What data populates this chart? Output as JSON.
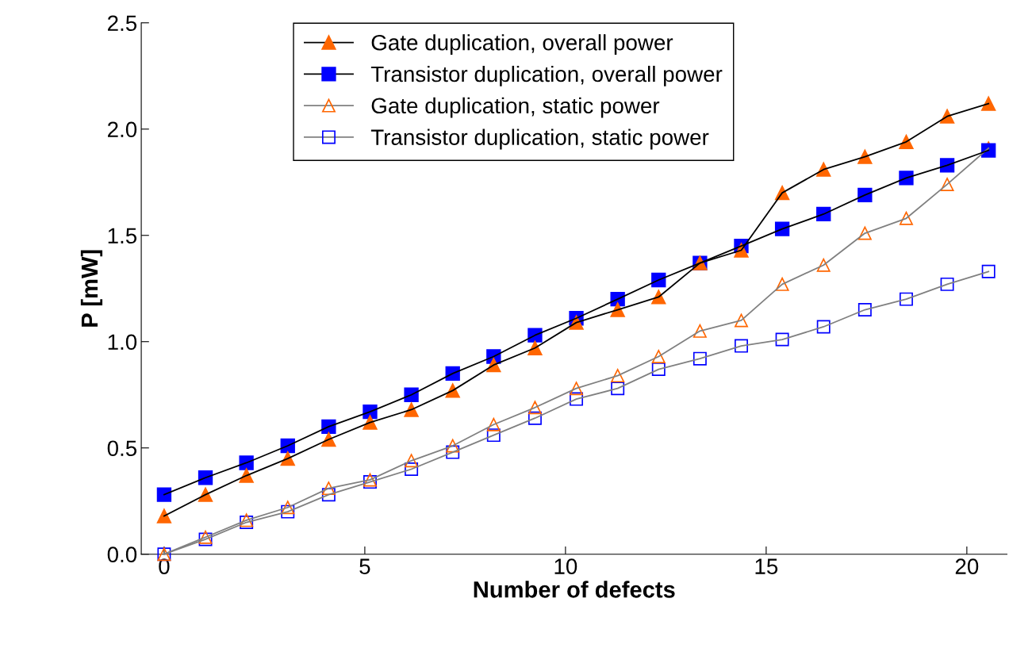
{
  "chart_data": {
    "type": "line",
    "xlabel": "Number of defects",
    "ylabel": "P [mW]",
    "x": [
      0,
      1.03,
      2.05,
      3.08,
      4.1,
      5.13,
      6.16,
      7.19,
      8.21,
      9.24,
      10.27,
      11.3,
      12.32,
      13.35,
      14.38,
      15.4,
      16.43,
      17.46,
      18.49,
      19.51,
      20.54
    ],
    "xlim": [
      -0.57,
      21.0
    ],
    "xticks": [
      0,
      5,
      10,
      15,
      20
    ],
    "ylim": [
      0,
      2.5
    ],
    "yticks": [
      {
        "value": 0,
        "label": "0.0"
      },
      {
        "value": 0.5,
        "label": "0.5"
      },
      {
        "value": 1.0,
        "label": "1.0"
      },
      {
        "value": 1.5,
        "label": "1.5"
      },
      {
        "value": 2.0,
        "label": "2.0"
      },
      {
        "value": 2.5,
        "label": "2.5"
      }
    ],
    "grid": false,
    "legend": "top",
    "line_style": "solid",
    "series": [
      {
        "name": "Gate duplication, overall power",
        "color": "#ff6600",
        "marker": "triangle",
        "values": [
          0.18,
          0.28,
          0.37,
          0.45,
          0.54,
          0.62,
          0.68,
          0.77,
          0.89,
          0.97,
          1.09,
          1.15,
          1.21,
          1.37,
          1.43,
          1.7,
          1.81,
          1.87,
          1.94,
          2.06,
          2.12
        ]
      },
      {
        "name": "Transistor duplication, overall power",
        "color": "#0000ff",
        "marker": "square",
        "values": [
          0.28,
          0.36,
          0.43,
          0.51,
          0.6,
          0.67,
          0.75,
          0.85,
          0.93,
          1.03,
          1.11,
          1.2,
          1.29,
          1.37,
          1.45,
          1.53,
          1.6,
          1.69,
          1.77,
          1.83,
          1.9
        ]
      },
      {
        "name": "Gate duplication, static power",
        "color": "#ff6600",
        "marker": "triangle",
        "values": [
          0,
          0.08,
          0.16,
          0.22,
          0.31,
          0.35,
          0.44,
          0.51,
          0.61,
          0.69,
          0.78,
          0.84,
          0.93,
          1.05,
          1.1,
          1.27,
          1.36,
          1.51,
          1.58,
          1.74,
          1.91
        ]
      },
      {
        "name": "Transistor duplication, static power",
        "color": "#0000ff",
        "marker": "square",
        "values": [
          0,
          0.07,
          0.15,
          0.2,
          0.28,
          0.34,
          0.4,
          0.48,
          0.56,
          0.64,
          0.73,
          0.78,
          0.87,
          0.92,
          0.98,
          1.01,
          1.07,
          1.15,
          1.2,
          1.27,
          1.33
        ]
      }
    ]
  }
}
